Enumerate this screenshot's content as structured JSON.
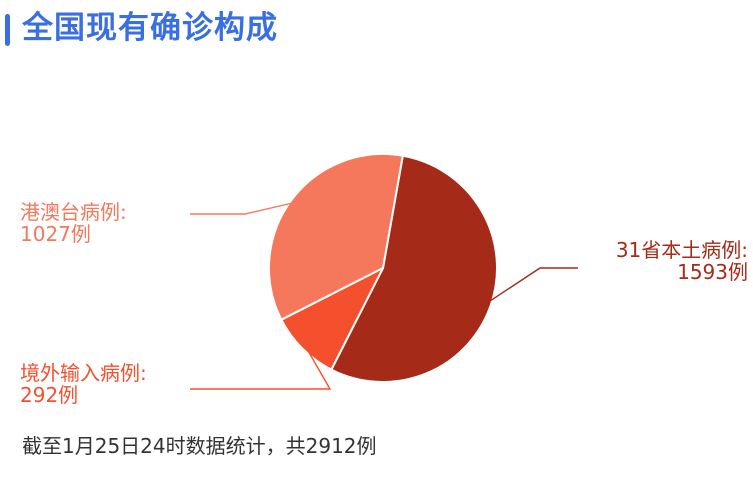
{
  "title": "全国现有确诊构成",
  "footnote": "截至1月25日24时数据统计，共2912例",
  "chart_data": {
    "type": "pie",
    "slices": [
      {
        "name": "31省本土病例",
        "value": 1593,
        "color": "#a52a17",
        "label_lines": [
          "31省本土病例:",
          "1593例"
        ]
      },
      {
        "name": "境外输入病例",
        "value": 292,
        "color": "#f5502e",
        "label_lines": [
          "境外输入病例:",
          "292例"
        ]
      },
      {
        "name": "港澳台病例",
        "value": 1027,
        "color": "#f6785c",
        "label_lines": [
          "港澳台病例:",
          "1027例"
        ]
      }
    ]
  }
}
